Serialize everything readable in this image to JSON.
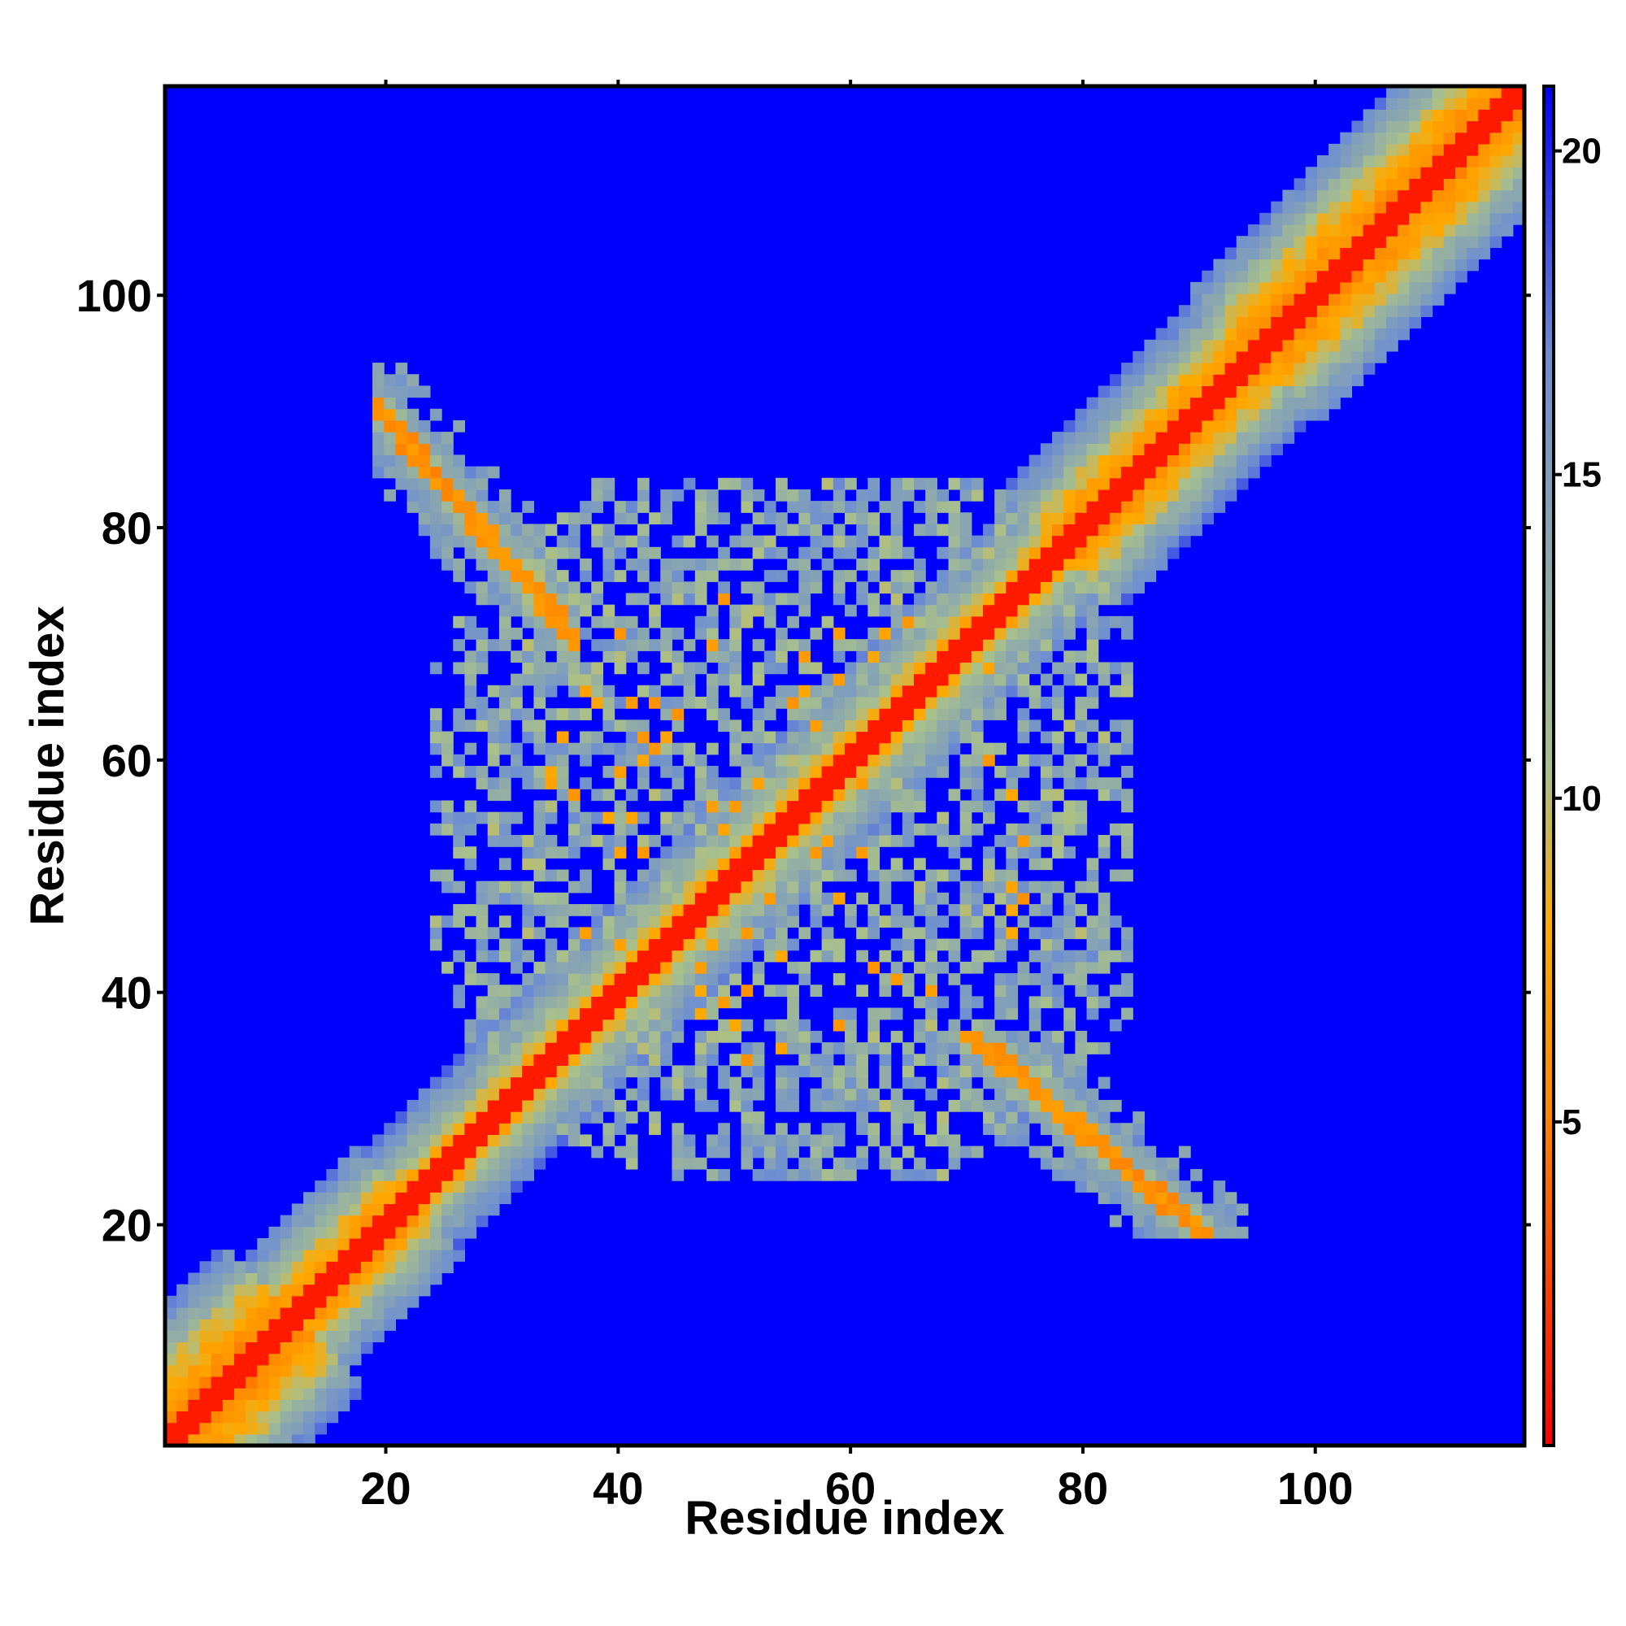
{
  "chart_data": {
    "type": "heatmap",
    "title": "",
    "xlabel": "Residue index",
    "ylabel": "Residue index",
    "xlim": [
      1,
      118
    ],
    "ylim": [
      1,
      118
    ],
    "n_residues": 118,
    "x_ticks": [
      20,
      40,
      60,
      80,
      100
    ],
    "y_ticks": [
      20,
      40,
      60,
      80,
      100
    ],
    "x_tick_labels": [
      "20",
      "40",
      "60",
      "80",
      "100"
    ],
    "y_tick_labels": [
      "20",
      "40",
      "60",
      "80",
      "100"
    ],
    "colorbar": {
      "range": [
        0,
        21
      ],
      "ticks": [
        5,
        10,
        15,
        20
      ],
      "tick_labels": [
        "5",
        "10",
        "15",
        "20"
      ],
      "position": "right",
      "colors": [
        "#ff0000",
        "#ff8800",
        "#ffaa00",
        "#a8c08c",
        "#6f8fd0",
        "#0000ff"
      ],
      "stops": [
        0,
        0.25,
        0.38,
        0.5,
        0.8,
        1.0
      ]
    },
    "background_value": 21,
    "regions": [
      {
        "name": "main diagonal (i ≈ j)",
        "x_range": [
          1,
          118
        ],
        "y_range": [
          1,
          118
        ],
        "value_range": [
          0,
          15
        ]
      },
      {
        "name": "off-diagonal contact band",
        "x_range": [
          20,
          36
        ],
        "y_range": [
          67,
          93
        ],
        "value_range": [
          5,
          15
        ]
      },
      {
        "name": "off-diagonal contact band (symmetric)",
        "x_range": [
          67,
          93
        ],
        "y_range": [
          20,
          36
        ],
        "value_range": [
          5,
          15
        ]
      },
      {
        "name": "central contact cluster",
        "x_range": [
          25,
          83
        ],
        "y_range": [
          25,
          83
        ],
        "value_range": [
          6,
          16
        ]
      }
    ]
  }
}
